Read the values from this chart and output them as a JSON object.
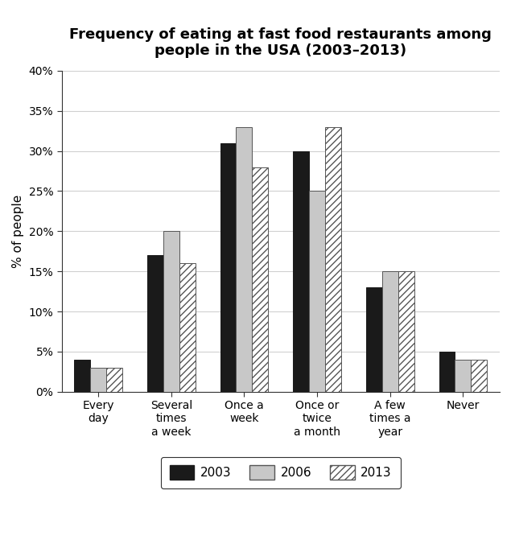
{
  "title": "Frequency of eating at fast food restaurants among\npeople in the USA (2003–2013)",
  "ylabel": "% of people",
  "categories": [
    "Every\nday",
    "Several\ntimes\na week",
    "Once a\nweek",
    "Once or\ntwice\na month",
    "A few\ntimes a\nyear",
    "Never"
  ],
  "series": {
    "2003": [
      4,
      17,
      31,
      30,
      13,
      5
    ],
    "2006": [
      3,
      20,
      33,
      25,
      15,
      4
    ],
    "2013": [
      3,
      16,
      28,
      33,
      15,
      4
    ]
  },
  "bar_colors": {
    "2003": "#1a1a1a",
    "2006": "#c8c8c8",
    "2013": "#ffffff"
  },
  "bar_edgecolors": {
    "2003": "#1a1a1a",
    "2006": "#555555",
    "2013": "#555555"
  },
  "hatch_patterns": {
    "2003": "",
    "2006": "",
    "2013": "////"
  },
  "ylim": [
    0,
    40
  ],
  "yticks": [
    0,
    5,
    10,
    15,
    20,
    25,
    30,
    35,
    40
  ],
  "ytick_labels": [
    "0%",
    "5%",
    "10%",
    "15%",
    "20%",
    "25%",
    "30%",
    "35%",
    "40%"
  ],
  "bar_width": 0.22,
  "title_fontsize": 13,
  "axis_label_fontsize": 11,
  "tick_fontsize": 10,
  "legend_fontsize": 11,
  "background_color": "#ffffff",
  "grid_color": "#d0d0d0"
}
